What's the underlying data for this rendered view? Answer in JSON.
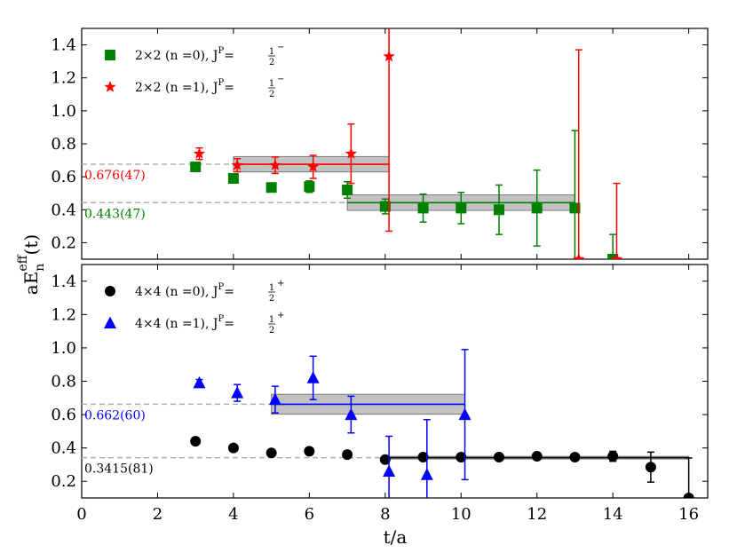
{
  "chart_data": [
    {
      "type": "scatter",
      "panel": "top",
      "xlim": [
        0,
        16.5
      ],
      "ylim": [
        0.1,
        1.5
      ],
      "yticks": [
        "0.2",
        "0.4",
        "0.6",
        "0.8",
        "1.0",
        "1.2",
        "1.4"
      ],
      "ytick_values": [
        0.2,
        0.4,
        0.6,
        0.8,
        1.0,
        1.2,
        1.4
      ],
      "series": [
        {
          "name": "2×2 (n=0), J^P=1/2^-",
          "legend": {
            "main": "2×2  (n =0), J",
            "sup": "P",
            "eq": "=",
            "frac": "1",
            "den": "2",
            "sign": "−"
          },
          "color": "#008000",
          "marker": "square",
          "points": [
            {
              "x": 3,
              "y": 0.66,
              "err": 0.02
            },
            {
              "x": 4,
              "y": 0.59,
              "err": 0.02
            },
            {
              "x": 5,
              "y": 0.535,
              "err": 0.02
            },
            {
              "x": 6,
              "y": 0.54,
              "err": 0.035
            },
            {
              "x": 7,
              "y": 0.52,
              "err": 0.05
            },
            {
              "x": 8,
              "y": 0.42,
              "err": 0.045
            },
            {
              "x": 9,
              "y": 0.41,
              "err": 0.085
            },
            {
              "x": 10,
              "y": 0.41,
              "err": 0.095
            },
            {
              "x": 11,
              "y": 0.4,
              "err": 0.15
            },
            {
              "x": 12,
              "y": 0.41,
              "err": 0.23
            },
            {
              "x": 13,
              "y": 0.41,
              "err": 0.47
            },
            {
              "x": 14,
              "y": 0.1,
              "err": 0.15
            }
          ]
        },
        {
          "name": "2×2 (n=1), J^P=1/2^-",
          "legend": {
            "main": "2×2  (n =1), J",
            "sup": "P",
            "eq": "=",
            "frac": "1",
            "den": "2",
            "sign": "−"
          },
          "color": "#ff0000",
          "marker": "star",
          "points": [
            {
              "x": 3.1,
              "y": 0.74,
              "err": 0.035
            },
            {
              "x": 4.1,
              "y": 0.67,
              "err": 0.04
            },
            {
              "x": 5.1,
              "y": 0.67,
              "err": 0.05
            },
            {
              "x": 6.1,
              "y": 0.66,
              "err": 0.07
            },
            {
              "x": 7.1,
              "y": 0.74,
              "err": 0.18
            },
            {
              "x": 8.1,
              "y": 1.33,
              "err": 1.06
            },
            {
              "x": 13.1,
              "y": 0.1,
              "err": 1.27
            },
            {
              "x": 14.1,
              "y": 0.1,
              "err": 0.46
            }
          ]
        }
      ],
      "fits": [
        {
          "label": "0.676(47)",
          "value": 0.676,
          "err": 0.047,
          "x_from": 4,
          "x_to": 8.1,
          "color": "#ff0000"
        },
        {
          "label": "0.443(47)",
          "value": 0.443,
          "err": 0.047,
          "x_from": 7,
          "x_to": 13,
          "color": "#008000"
        }
      ]
    },
    {
      "type": "scatter",
      "panel": "bottom",
      "xlim": [
        0,
        16.5
      ],
      "ylim": [
        0.1,
        1.5
      ],
      "xlabel": "t/a",
      "xticks": [
        "0",
        "2",
        "4",
        "6",
        "8",
        "10",
        "12",
        "14",
        "16"
      ],
      "xtick_values": [
        0,
        2,
        4,
        6,
        8,
        10,
        12,
        14,
        16
      ],
      "yticks": [
        "0.2",
        "0.4",
        "0.6",
        "0.8",
        "1.0",
        "1.2",
        "1.4"
      ],
      "ytick_values": [
        0.2,
        0.4,
        0.6,
        0.8,
        1.0,
        1.2,
        1.4
      ],
      "series": [
        {
          "name": "4×4 (n=0), J^P=1/2^+",
          "legend": {
            "main": "4×4  (n =0), J",
            "sup": "P",
            "eq": "=",
            "frac": "1",
            "den": "2",
            "sign": "+"
          },
          "color": "#000000",
          "marker": "circle",
          "points": [
            {
              "x": 3,
              "y": 0.44,
              "err": 0.01
            },
            {
              "x": 4,
              "y": 0.4,
              "err": 0.01
            },
            {
              "x": 5,
              "y": 0.37,
              "err": 0.01
            },
            {
              "x": 6,
              "y": 0.38,
              "err": 0.01
            },
            {
              "x": 7,
              "y": 0.36,
              "err": 0.01
            },
            {
              "x": 8,
              "y": 0.33,
              "err": 0.012
            },
            {
              "x": 9,
              "y": 0.345,
              "err": 0.012
            },
            {
              "x": 10,
              "y": 0.345,
              "err": 0.015
            },
            {
              "x": 11,
              "y": 0.345,
              "err": 0.015
            },
            {
              "x": 12,
              "y": 0.35,
              "err": 0.015
            },
            {
              "x": 13,
              "y": 0.345,
              "err": 0.02
            },
            {
              "x": 14,
              "y": 0.35,
              "err": 0.03
            },
            {
              "x": 15,
              "y": 0.285,
              "err": 0.09
            },
            {
              "x": 16,
              "y": 0.1,
              "err": 0.24
            }
          ]
        },
        {
          "name": "4×4 (n=1), J^P=1/2^+",
          "legend": {
            "main": "4×4  (n =1), J",
            "sup": "P",
            "eq": "=",
            "frac": "1",
            "den": "2",
            "sign": "+"
          },
          "color": "#0000ff",
          "marker": "triangle",
          "points": [
            {
              "x": 3.1,
              "y": 0.79,
              "err": 0.02
            },
            {
              "x": 4.1,
              "y": 0.73,
              "err": 0.05
            },
            {
              "x": 5.1,
              "y": 0.69,
              "err": 0.08
            },
            {
              "x": 6.1,
              "y": 0.82,
              "err": 0.13
            },
            {
              "x": 7.1,
              "y": 0.6,
              "err": 0.11
            },
            {
              "x": 8.1,
              "y": 0.26,
              "err": 0.21
            },
            {
              "x": 9.1,
              "y": 0.24,
              "err": 0.33
            },
            {
              "x": 10.1,
              "y": 0.6,
              "err": 0.39
            }
          ]
        }
      ],
      "fits": [
        {
          "label": "0.662(60)",
          "value": 0.662,
          "err": 0.06,
          "x_from": 5,
          "x_to": 10.1,
          "color": "#0000ff"
        },
        {
          "label": "0.3415(81)",
          "value": 0.3415,
          "err": 0.0081,
          "x_from": 8,
          "x_to": 16,
          "color": "#000000"
        }
      ]
    }
  ],
  "ylabel": {
    "base": "aE",
    "sub": "n",
    "sup": "eff",
    "tail": "(t)"
  }
}
